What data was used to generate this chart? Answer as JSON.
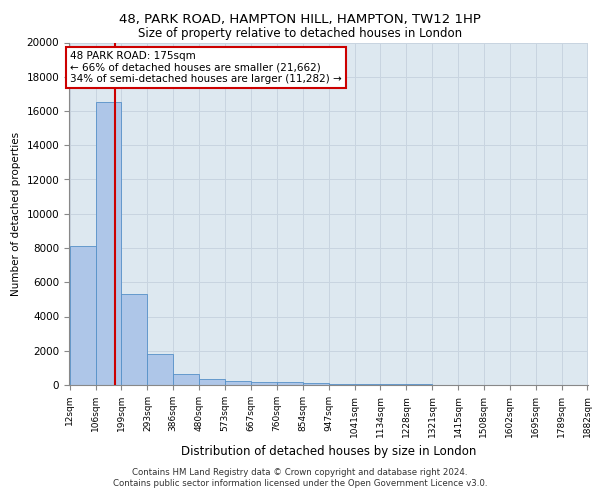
{
  "title_line1": "48, PARK ROAD, HAMPTON HILL, HAMPTON, TW12 1HP",
  "title_line2": "Size of property relative to detached houses in London",
  "xlabel": "Distribution of detached houses by size in London",
  "ylabel": "Number of detached properties",
  "bar_left_edges": [
    12,
    106,
    199,
    293,
    386,
    480,
    573,
    667,
    760,
    854,
    947,
    1041,
    1134,
    1228,
    1321,
    1415,
    1508,
    1602,
    1695,
    1789
  ],
  "bar_widths": [
    94,
    93,
    94,
    93,
    94,
    93,
    94,
    93,
    94,
    93,
    94,
    93,
    94,
    93,
    94,
    93,
    94,
    93,
    94,
    93
  ],
  "bar_heights": [
    8100,
    16500,
    5300,
    1800,
    650,
    350,
    260,
    200,
    160,
    130,
    80,
    50,
    40,
    30,
    20,
    15,
    10,
    8,
    5,
    3
  ],
  "bar_color": "#aec6e8",
  "bar_edge_color": "#5590c8",
  "tick_labels": [
    "12sqm",
    "106sqm",
    "199sqm",
    "293sqm",
    "386sqm",
    "480sqm",
    "573sqm",
    "667sqm",
    "760sqm",
    "854sqm",
    "947sqm",
    "1041sqm",
    "1134sqm",
    "1228sqm",
    "1321sqm",
    "1415sqm",
    "1508sqm",
    "1602sqm",
    "1695sqm",
    "1789sqm",
    "1882sqm"
  ],
  "property_size": 175,
  "red_line_color": "#cc0000",
  "annotation_line1": "48 PARK ROAD: 175sqm",
  "annotation_line2": "← 66% of detached houses are smaller (21,662)",
  "annotation_line3": "34% of semi-detached houses are larger (11,282) →",
  "annotation_box_color": "#cc0000",
  "ylim": [
    0,
    20000
  ],
  "yticks": [
    0,
    2000,
    4000,
    6000,
    8000,
    10000,
    12000,
    14000,
    16000,
    18000,
    20000
  ],
  "grid_color": "#c8d4e0",
  "bg_color": "#dde8f0",
  "footer_line1": "Contains HM Land Registry data © Crown copyright and database right 2024.",
  "footer_line2": "Contains public sector information licensed under the Open Government Licence v3.0."
}
